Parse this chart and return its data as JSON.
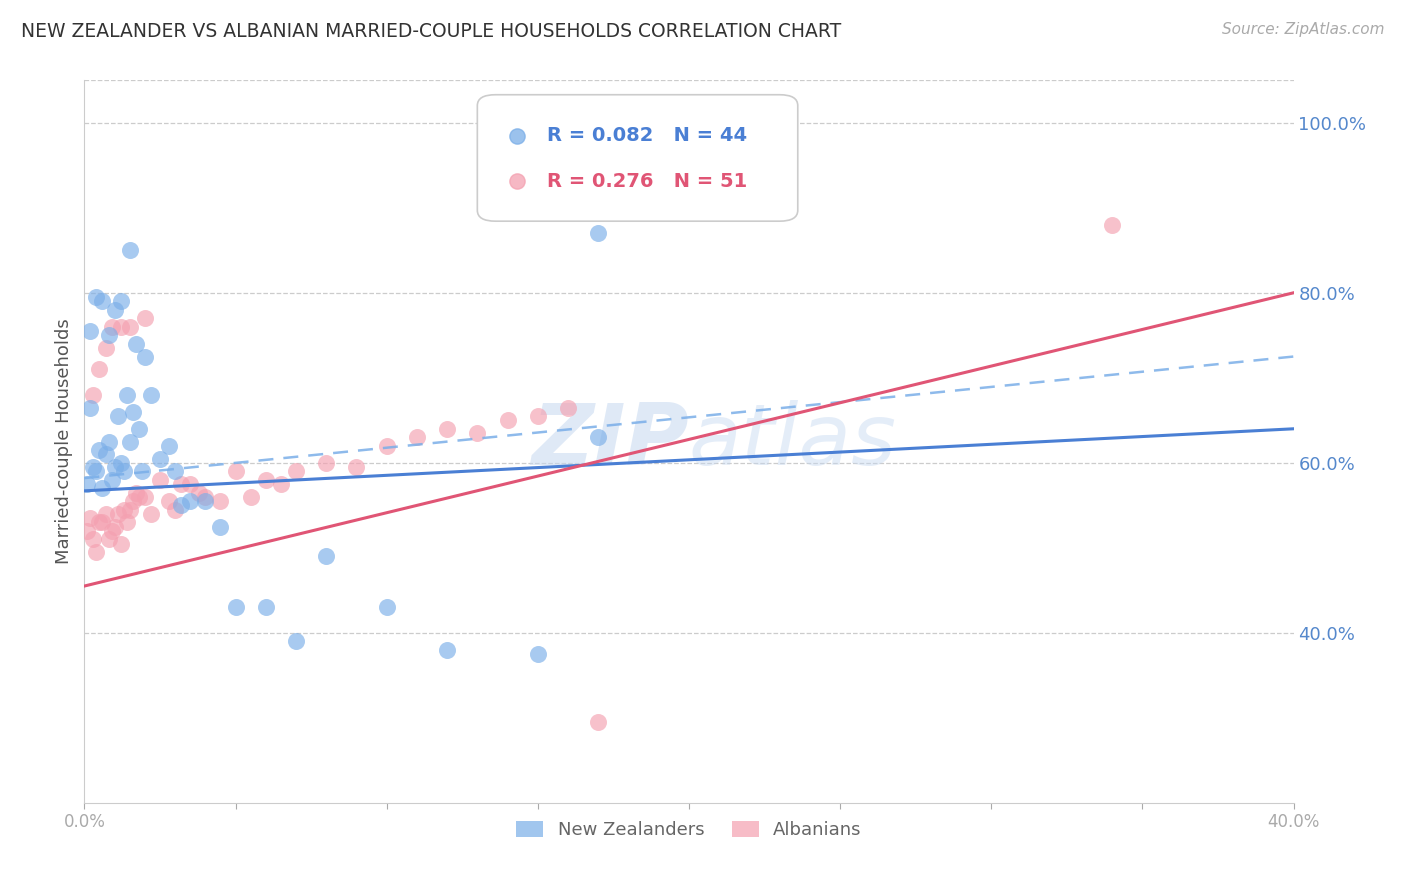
{
  "title": "NEW ZEALANDER VS ALBANIAN MARRIED-COUPLE HOUSEHOLDS CORRELATION CHART",
  "source": "Source: ZipAtlas.com",
  "ylabel": "Married-couple Households",
  "watermark": "ZIPatlas",
  "xmin": 0.0,
  "xmax": 0.4,
  "ymin": 0.2,
  "ymax": 1.05,
  "yticks": [
    0.4,
    0.6,
    0.8,
    1.0
  ],
  "xticks": [
    0.0,
    0.05,
    0.1,
    0.15,
    0.2,
    0.25,
    0.3,
    0.35,
    0.4
  ],
  "ytick_labels": [
    "40.0%",
    "60.0%",
    "80.0%",
    "100.0%"
  ],
  "blue_color": "#7aaee8",
  "pink_color": "#f4a0b0",
  "blue_line_color": "#4a7fd4",
  "pink_line_color": "#e05575",
  "blue_R": 0.082,
  "blue_N": 44,
  "pink_R": 0.276,
  "pink_N": 51,
  "nz_x": [
    0.001,
    0.002,
    0.003,
    0.004,
    0.005,
    0.006,
    0.007,
    0.008,
    0.009,
    0.01,
    0.011,
    0.012,
    0.013,
    0.014,
    0.015,
    0.016,
    0.017,
    0.018,
    0.019,
    0.02,
    0.022,
    0.025,
    0.028,
    0.03,
    0.032,
    0.035,
    0.04,
    0.045,
    0.05,
    0.06,
    0.07,
    0.08,
    0.1,
    0.12,
    0.15,
    0.17,
    0.002,
    0.004,
    0.006,
    0.008,
    0.01,
    0.012,
    0.015,
    0.17
  ],
  "nz_y": [
    0.575,
    0.665,
    0.595,
    0.59,
    0.615,
    0.57,
    0.61,
    0.625,
    0.58,
    0.595,
    0.655,
    0.6,
    0.59,
    0.68,
    0.625,
    0.66,
    0.74,
    0.64,
    0.59,
    0.725,
    0.68,
    0.605,
    0.62,
    0.59,
    0.55,
    0.555,
    0.555,
    0.525,
    0.43,
    0.43,
    0.39,
    0.49,
    0.43,
    0.38,
    0.375,
    0.63,
    0.755,
    0.795,
    0.79,
    0.75,
    0.78,
    0.79,
    0.85,
    0.87
  ],
  "alb_x": [
    0.001,
    0.002,
    0.003,
    0.004,
    0.005,
    0.006,
    0.007,
    0.008,
    0.009,
    0.01,
    0.011,
    0.012,
    0.013,
    0.014,
    0.015,
    0.016,
    0.017,
    0.018,
    0.02,
    0.022,
    0.025,
    0.028,
    0.03,
    0.032,
    0.035,
    0.038,
    0.04,
    0.045,
    0.05,
    0.055,
    0.06,
    0.065,
    0.07,
    0.08,
    0.09,
    0.1,
    0.11,
    0.12,
    0.13,
    0.14,
    0.15,
    0.16,
    0.003,
    0.005,
    0.007,
    0.009,
    0.012,
    0.015,
    0.02,
    0.34,
    0.17
  ],
  "alb_y": [
    0.52,
    0.535,
    0.51,
    0.495,
    0.53,
    0.53,
    0.54,
    0.51,
    0.52,
    0.525,
    0.54,
    0.505,
    0.545,
    0.53,
    0.545,
    0.555,
    0.565,
    0.56,
    0.56,
    0.54,
    0.58,
    0.555,
    0.545,
    0.575,
    0.575,
    0.565,
    0.56,
    0.555,
    0.59,
    0.56,
    0.58,
    0.575,
    0.59,
    0.6,
    0.595,
    0.62,
    0.63,
    0.64,
    0.635,
    0.65,
    0.655,
    0.665,
    0.68,
    0.71,
    0.735,
    0.76,
    0.76,
    0.76,
    0.77,
    0.88,
    0.295
  ]
}
